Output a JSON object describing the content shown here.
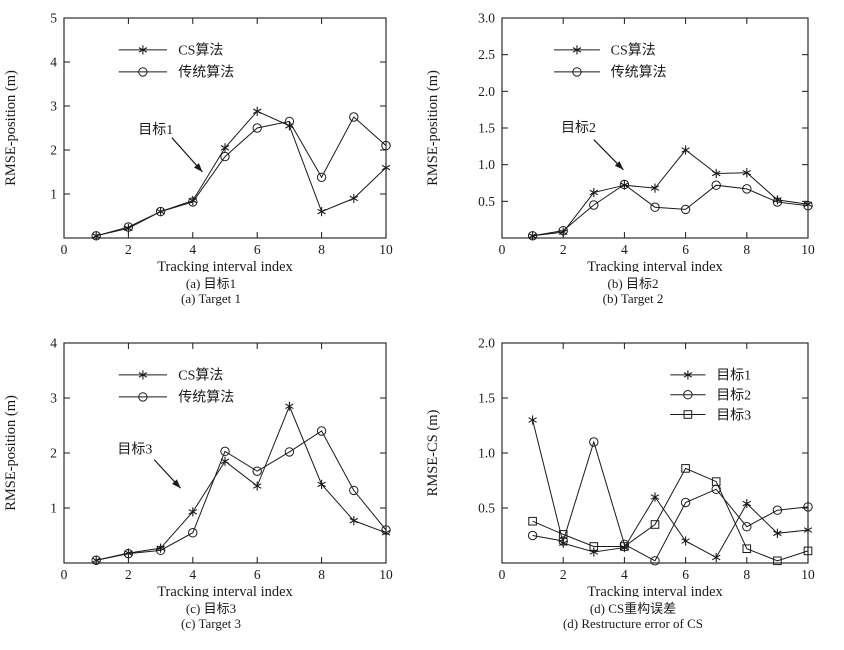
{
  "colors": {
    "line": "#1a1a1a",
    "background": "#ffffff"
  },
  "chart_data": [
    {
      "id": "a",
      "type": "line",
      "xlabel": "Tracking interval index",
      "ylabel": "RMSE-position (m)",
      "xlim": [
        0,
        10
      ],
      "ylim": [
        0,
        5
      ],
      "xticks": [
        0,
        2,
        4,
        6,
        8,
        10
      ],
      "xtick_labels": [
        "0",
        "2",
        "4",
        "6",
        "8",
        "10"
      ],
      "yticks": [
        1,
        2,
        3,
        4,
        5
      ],
      "ytick_labels": [
        "1",
        "2",
        "3",
        "4",
        "5"
      ],
      "x": [
        1,
        2,
        3,
        4,
        5,
        6,
        7,
        8,
        9,
        10
      ],
      "series": [
        {
          "name": "CS算法",
          "marker": "star",
          "values": [
            0.05,
            0.22,
            0.6,
            0.85,
            2.05,
            2.88,
            2.55,
            0.6,
            0.9,
            1.6
          ]
        },
        {
          "name": "传统算法",
          "marker": "circle",
          "values": [
            0.05,
            0.25,
            0.6,
            0.82,
            1.85,
            2.5,
            2.65,
            1.38,
            2.75,
            2.1
          ]
        }
      ],
      "legend_position": "upper-left",
      "annotation": {
        "text": "目标1",
        "text_xy": [
          2.85,
          2.45
        ],
        "arrow_start": [
          3.35,
          2.28
        ],
        "arrow_xy": [
          4.3,
          1.5
        ]
      },
      "caption_cn": "(a) 目标1",
      "caption_en": "(a) Target 1"
    },
    {
      "id": "b",
      "type": "line",
      "xlabel": "Tracking interval index",
      "ylabel": "RMSE-position (m)",
      "xlim": [
        0,
        10
      ],
      "ylim": [
        0,
        3
      ],
      "xticks": [
        0,
        2,
        4,
        6,
        8,
        10
      ],
      "xtick_labels": [
        "0",
        "2",
        "4",
        "6",
        "8",
        "10"
      ],
      "yticks": [
        0.5,
        1.0,
        1.5,
        2.0,
        2.5,
        3.0
      ],
      "ytick_labels": [
        "0.5",
        "1.0",
        "1.5",
        "2.0",
        "2.5",
        "3.0"
      ],
      "x": [
        1,
        2,
        3,
        4,
        5,
        6,
        7,
        8,
        9,
        10
      ],
      "series": [
        {
          "name": "CS算法",
          "marker": "star",
          "values": [
            0.03,
            0.08,
            0.62,
            0.72,
            0.68,
            1.2,
            0.88,
            0.89,
            0.52,
            0.46
          ]
        },
        {
          "name": "传统算法",
          "marker": "circle",
          "values": [
            0.03,
            0.1,
            0.45,
            0.73,
            0.42,
            0.39,
            0.72,
            0.67,
            0.49,
            0.44
          ]
        }
      ],
      "legend_position": "upper-left",
      "annotation": {
        "text": "目标2",
        "text_xy": [
          2.5,
          1.5
        ],
        "arrow_start": [
          3.0,
          1.34
        ],
        "arrow_xy": [
          3.97,
          0.93
        ]
      },
      "caption_cn": "(b) 目标2",
      "caption_en": "(b) Target 2"
    },
    {
      "id": "c",
      "type": "line",
      "xlabel": "Tracking interval index",
      "ylabel": "RMSE-position (m)",
      "xlim": [
        0,
        10
      ],
      "ylim": [
        0,
        4
      ],
      "xticks": [
        0,
        2,
        4,
        6,
        8,
        10
      ],
      "xtick_labels": [
        "0",
        "2",
        "4",
        "6",
        "8",
        "10"
      ],
      "yticks": [
        1,
        2,
        3,
        4
      ],
      "ytick_labels": [
        "1",
        "2",
        "3",
        "4"
      ],
      "x": [
        1,
        2,
        3,
        4,
        5,
        6,
        7,
        8,
        9,
        10
      ],
      "series": [
        {
          "name": "CS算法",
          "marker": "star",
          "values": [
            0.05,
            0.18,
            0.27,
            0.93,
            1.85,
            1.4,
            2.85,
            1.43,
            0.77,
            0.55
          ]
        },
        {
          "name": "传统算法",
          "marker": "circle",
          "values": [
            0.05,
            0.17,
            0.23,
            0.55,
            2.03,
            1.67,
            2.02,
            2.4,
            1.32,
            0.6
          ]
        }
      ],
      "legend_position": "upper-left",
      "annotation": {
        "text": "目标3",
        "text_xy": [
          2.2,
          2.06
        ],
        "arrow_start": [
          2.8,
          1.88
        ],
        "arrow_xy": [
          3.62,
          1.36
        ]
      },
      "caption_cn": "(c) 目标3",
      "caption_en": "(c) Target 3"
    },
    {
      "id": "d",
      "type": "line",
      "xlabel": "Tracking interval index",
      "ylabel": "RMSE-CS (m)",
      "xlim": [
        0,
        10
      ],
      "ylim": [
        0,
        2
      ],
      "xticks": [
        0,
        2,
        4,
        6,
        8,
        10
      ],
      "xtick_labels": [
        "0",
        "2",
        "4",
        "6",
        "8",
        "10"
      ],
      "yticks": [
        0.5,
        1.0,
        1.5,
        2.0
      ],
      "ytick_labels": [
        "0.5",
        "1.0",
        "1.5",
        "2.0"
      ],
      "x": [
        1,
        2,
        3,
        4,
        5,
        6,
        7,
        8,
        9,
        10
      ],
      "series": [
        {
          "name": "目标1",
          "marker": "star",
          "values": [
            1.3,
            0.18,
            0.1,
            0.14,
            0.6,
            0.2,
            0.05,
            0.54,
            0.27,
            0.3
          ]
        },
        {
          "name": "目标2",
          "marker": "circle",
          "values": [
            0.25,
            0.2,
            1.1,
            0.17,
            0.02,
            0.55,
            0.67,
            0.33,
            0.48,
            0.51
          ]
        },
        {
          "name": "目标3",
          "marker": "square",
          "values": [
            0.38,
            0.26,
            0.15,
            0.15,
            0.35,
            0.86,
            0.74,
            0.13,
            0.02,
            0.11
          ]
        }
      ],
      "legend_position": "upper-right",
      "annotation": null,
      "caption_cn": "(d) CS重构误差",
      "caption_en": "(d) Restructure error of CS"
    }
  ]
}
